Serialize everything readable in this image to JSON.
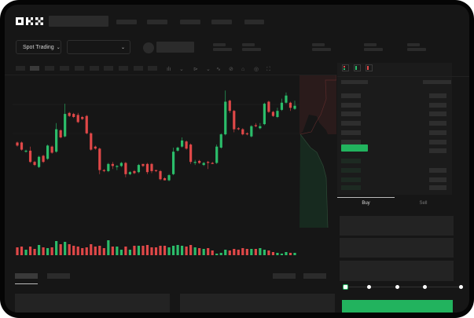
{
  "header": {
    "logo": "OKX",
    "nav_count": 5
  },
  "market_bar": {
    "mode_button": "Spot Trading",
    "pair_dropdown": "",
    "chevron": "chevron-down-icon"
  },
  "order_book": {
    "view_icons": [
      "book-both-icon",
      "book-bids-icon",
      "book-asks-icon"
    ]
  },
  "trade_panel": {
    "tabs": [
      "Buy",
      "Sell"
    ],
    "active_tab": "Buy",
    "slider_percent": 0,
    "submit_color": "#22b35e"
  },
  "colors": {
    "up": "#2bbd6a",
    "down": "#e04848",
    "accent": "#22b35e",
    "background": "#161616"
  },
  "chart_data": {
    "type": "candlestick",
    "title": "",
    "candles": [
      [
        45,
        42,
        46,
        41
      ],
      [
        45,
        38,
        46,
        37
      ],
      [
        36,
        37,
        38,
        35
      ],
      [
        37,
        26,
        41,
        25
      ],
      [
        26,
        23,
        27,
        22
      ],
      [
        21,
        31,
        32,
        20
      ],
      [
        32,
        26,
        33,
        25
      ],
      [
        29,
        42,
        43,
        28
      ],
      [
        41,
        35,
        42,
        34
      ],
      [
        36,
        58,
        64,
        35
      ],
      [
        57,
        50,
        58,
        49
      ],
      [
        51,
        73,
        83,
        50
      ],
      [
        74,
        71,
        75,
        70
      ],
      [
        73,
        70,
        74,
        69
      ],
      [
        72,
        65,
        74,
        64
      ],
      [
        70,
        68,
        71,
        67
      ],
      [
        71,
        54,
        72,
        53
      ],
      [
        54,
        38,
        55,
        37
      ],
      [
        41,
        39,
        42,
        38
      ],
      [
        39,
        18,
        40,
        14
      ],
      [
        18,
        17,
        19,
        16
      ],
      [
        17,
        24,
        25,
        16
      ],
      [
        24,
        22,
        26,
        19
      ],
      [
        21,
        22,
        23,
        18
      ],
      [
        22,
        25,
        26,
        21
      ],
      [
        25,
        14,
        26,
        11
      ],
      [
        14,
        16,
        17,
        13
      ],
      [
        17,
        15,
        18,
        14
      ],
      [
        16,
        23,
        24,
        15
      ],
      [
        24,
        22,
        24,
        21
      ],
      [
        24,
        16,
        25,
        14
      ],
      [
        24,
        17,
        25,
        15
      ],
      [
        18,
        17,
        18,
        16
      ],
      [
        17,
        9,
        18,
        8
      ],
      [
        10,
        8,
        11,
        8
      ],
      [
        8,
        13,
        14,
        7
      ],
      [
        14,
        36,
        40,
        13
      ],
      [
        37,
        40,
        41,
        36
      ],
      [
        41,
        47,
        50,
        40
      ],
      [
        46,
        39,
        47,
        38
      ],
      [
        43,
        26,
        44,
        24
      ],
      [
        25,
        26,
        28,
        23
      ],
      [
        27,
        25,
        28,
        24
      ],
      [
        23,
        25,
        26,
        22
      ],
      [
        26,
        25,
        27,
        19
      ],
      [
        25,
        24,
        26,
        24
      ],
      [
        25,
        41,
        43,
        24
      ],
      [
        40,
        53,
        54,
        39
      ],
      [
        53,
        85,
        96,
        52
      ],
      [
        86,
        76,
        87,
        74
      ],
      [
        76,
        58,
        77,
        55
      ],
      [
        59,
        58,
        60,
        57
      ],
      [
        58,
        53,
        59,
        52
      ],
      [
        54,
        53,
        55,
        52
      ],
      [
        51,
        61,
        62,
        50
      ],
      [
        62,
        61,
        64,
        60
      ],
      [
        59,
        61,
        64,
        58
      ],
      [
        63,
        83,
        84,
        62
      ],
      [
        85,
        75,
        86,
        74
      ],
      [
        75,
        71,
        76,
        70
      ],
      [
        70,
        76,
        79,
        69
      ],
      [
        77,
        84,
        88,
        76
      ],
      [
        84,
        91,
        94,
        83
      ],
      [
        84,
        79,
        85,
        76
      ],
      [
        78,
        81,
        86,
        77
      ]
    ],
    "volume": [
      10,
      11,
      7,
      11,
      8,
      13,
      10,
      9,
      10,
      18,
      14,
      17,
      14,
      12,
      11,
      9,
      10,
      14,
      11,
      12,
      9,
      19,
      11,
      11,
      7,
      11,
      7,
      12,
      12,
      12,
      13,
      10,
      10,
      12,
      12,
      10,
      12,
      13,
      12,
      11,
      13,
      10,
      9,
      8,
      9,
      6,
      2,
      3,
      7,
      6,
      8,
      7,
      9,
      8,
      8,
      8,
      9,
      7,
      6,
      4,
      3,
      2,
      4,
      3,
      3
    ]
  }
}
